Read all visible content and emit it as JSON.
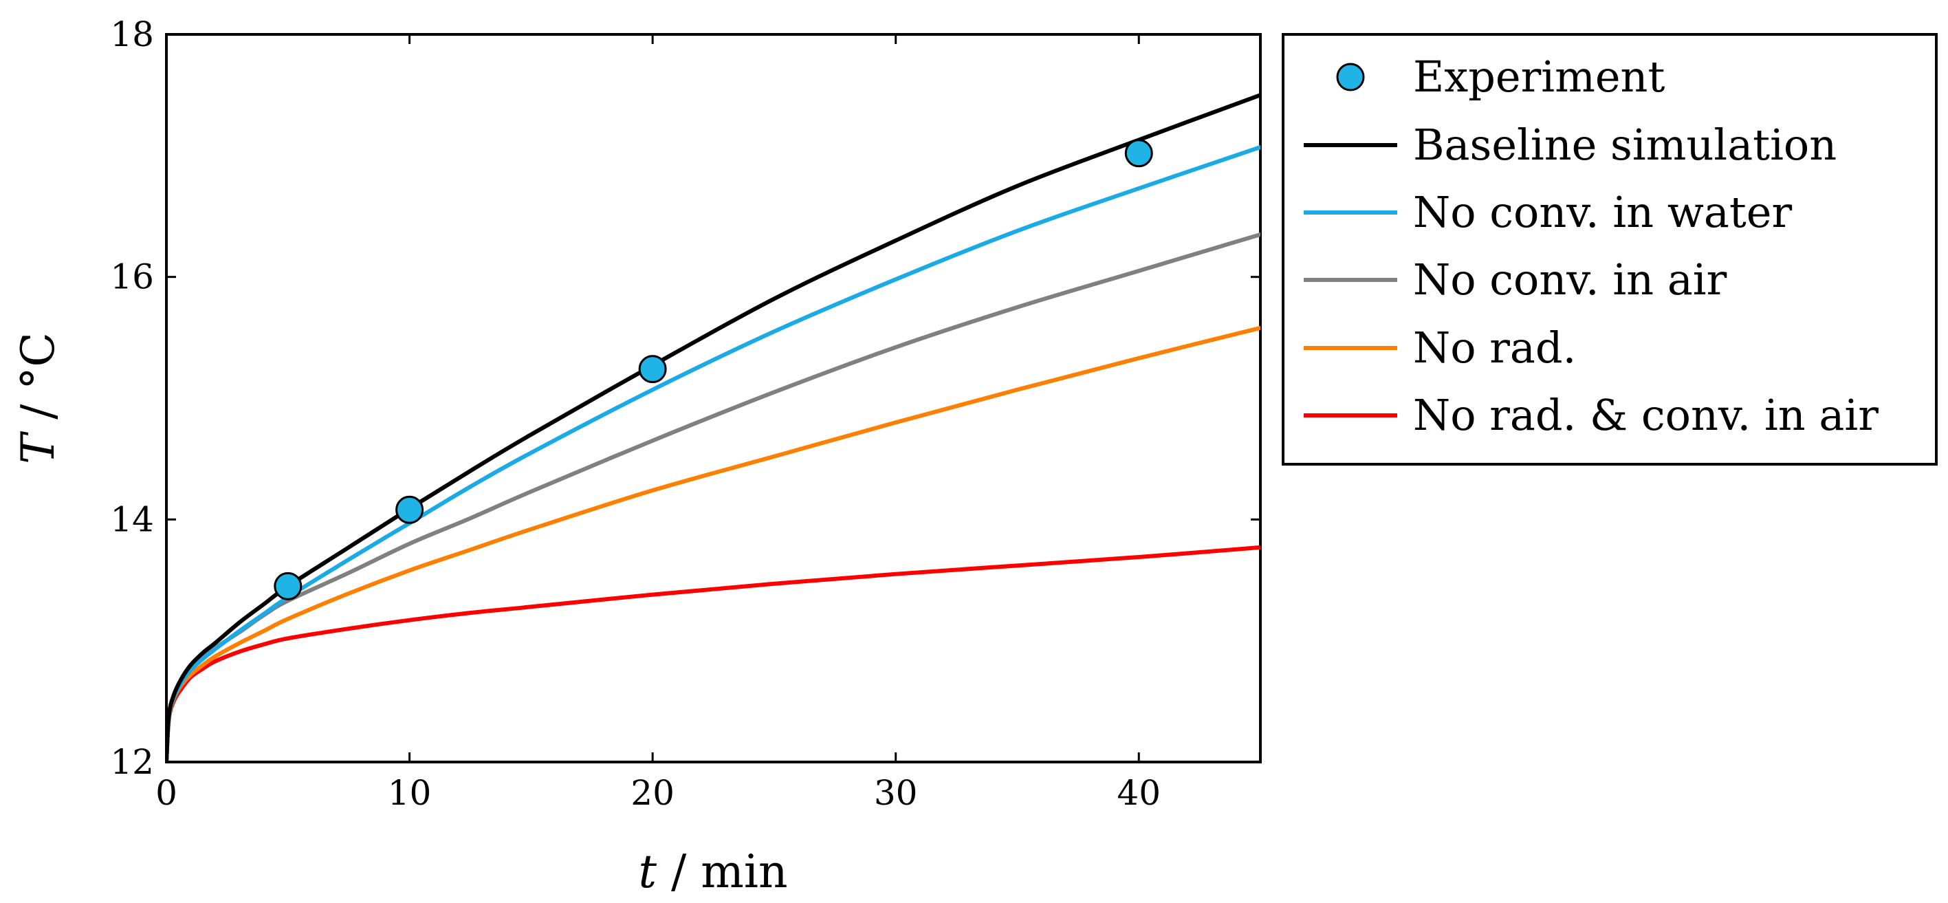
{
  "chart_data": {
    "type": "line",
    "xlabel": {
      "var": "t",
      "sep": " / ",
      "unit": "min"
    },
    "ylabel": {
      "var": "T",
      "sep": " / ",
      "unit": "°C"
    },
    "xlim": [
      0,
      45
    ],
    "ylim": [
      12,
      18
    ],
    "xticks": [
      0,
      10,
      20,
      30,
      40
    ],
    "yticks": [
      12,
      14,
      16,
      18
    ],
    "grid": false,
    "legend_position": "outside-right",
    "experiment": {
      "name": "Experiment",
      "color": "#1fb3e6",
      "x": [
        5,
        10,
        20,
        40
      ],
      "y": [
        13.45,
        14.08,
        15.24,
        17.02
      ]
    },
    "series": [
      {
        "name": "Baseline simulation",
        "color": "#000000",
        "x": [
          0,
          0.1,
          0.3,
          0.6,
          1,
          1.5,
          2,
          3,
          4,
          5,
          7.5,
          10,
          12.5,
          15,
          20,
          25,
          30,
          35,
          40,
          45
        ],
        "y": [
          12.0,
          12.38,
          12.55,
          12.68,
          12.8,
          12.9,
          12.98,
          13.15,
          13.3,
          13.45,
          13.77,
          14.09,
          14.4,
          14.7,
          15.27,
          15.82,
          16.3,
          16.75,
          17.13,
          17.5
        ]
      },
      {
        "name": "No conv. in water",
        "color": "#1aabe6",
        "x": [
          0,
          0.1,
          0.3,
          0.6,
          1,
          1.5,
          2,
          3,
          4,
          5,
          7.5,
          10,
          12.5,
          15,
          20,
          25,
          30,
          35,
          40,
          45
        ],
        "y": [
          12.0,
          12.37,
          12.53,
          12.65,
          12.76,
          12.85,
          12.93,
          13.08,
          13.22,
          13.36,
          13.67,
          13.97,
          14.27,
          14.55,
          15.07,
          15.55,
          15.98,
          16.38,
          16.73,
          17.07
        ]
      },
      {
        "name": "No conv. in air",
        "color": "#808080",
        "x": [
          0,
          0.1,
          0.3,
          0.6,
          1,
          1.5,
          2,
          3,
          4,
          5,
          7.5,
          10,
          12.5,
          15,
          20,
          25,
          30,
          35,
          40,
          45
        ],
        "y": [
          12.0,
          12.37,
          12.54,
          12.66,
          12.77,
          12.86,
          12.94,
          13.07,
          13.21,
          13.33,
          13.56,
          13.8,
          14.01,
          14.23,
          14.65,
          15.05,
          15.42,
          15.75,
          16.05,
          16.35
        ]
      },
      {
        "name": "No rad.",
        "color": "#ff8000",
        "x": [
          0,
          0.1,
          0.3,
          0.6,
          1,
          1.5,
          2,
          3,
          4,
          5,
          7.5,
          10,
          12.5,
          15,
          20,
          25,
          30,
          35,
          40,
          45
        ],
        "y": [
          12.0,
          12.36,
          12.52,
          12.63,
          12.72,
          12.8,
          12.87,
          12.98,
          13.08,
          13.18,
          13.39,
          13.58,
          13.75,
          13.92,
          14.24,
          14.52,
          14.8,
          15.07,
          15.33,
          15.58
        ]
      },
      {
        "name": "No rad. & conv. in air",
        "color": "#ff0000",
        "x": [
          0,
          0.1,
          0.3,
          0.6,
          1,
          1.5,
          2,
          3,
          4,
          5,
          7.5,
          10,
          12.5,
          15,
          20,
          25,
          30,
          35,
          40,
          45
        ],
        "y": [
          12.0,
          12.35,
          12.5,
          12.6,
          12.7,
          12.77,
          12.83,
          12.91,
          12.97,
          13.02,
          13.1,
          13.17,
          13.23,
          13.28,
          13.38,
          13.47,
          13.55,
          13.62,
          13.69,
          13.77
        ]
      }
    ]
  }
}
